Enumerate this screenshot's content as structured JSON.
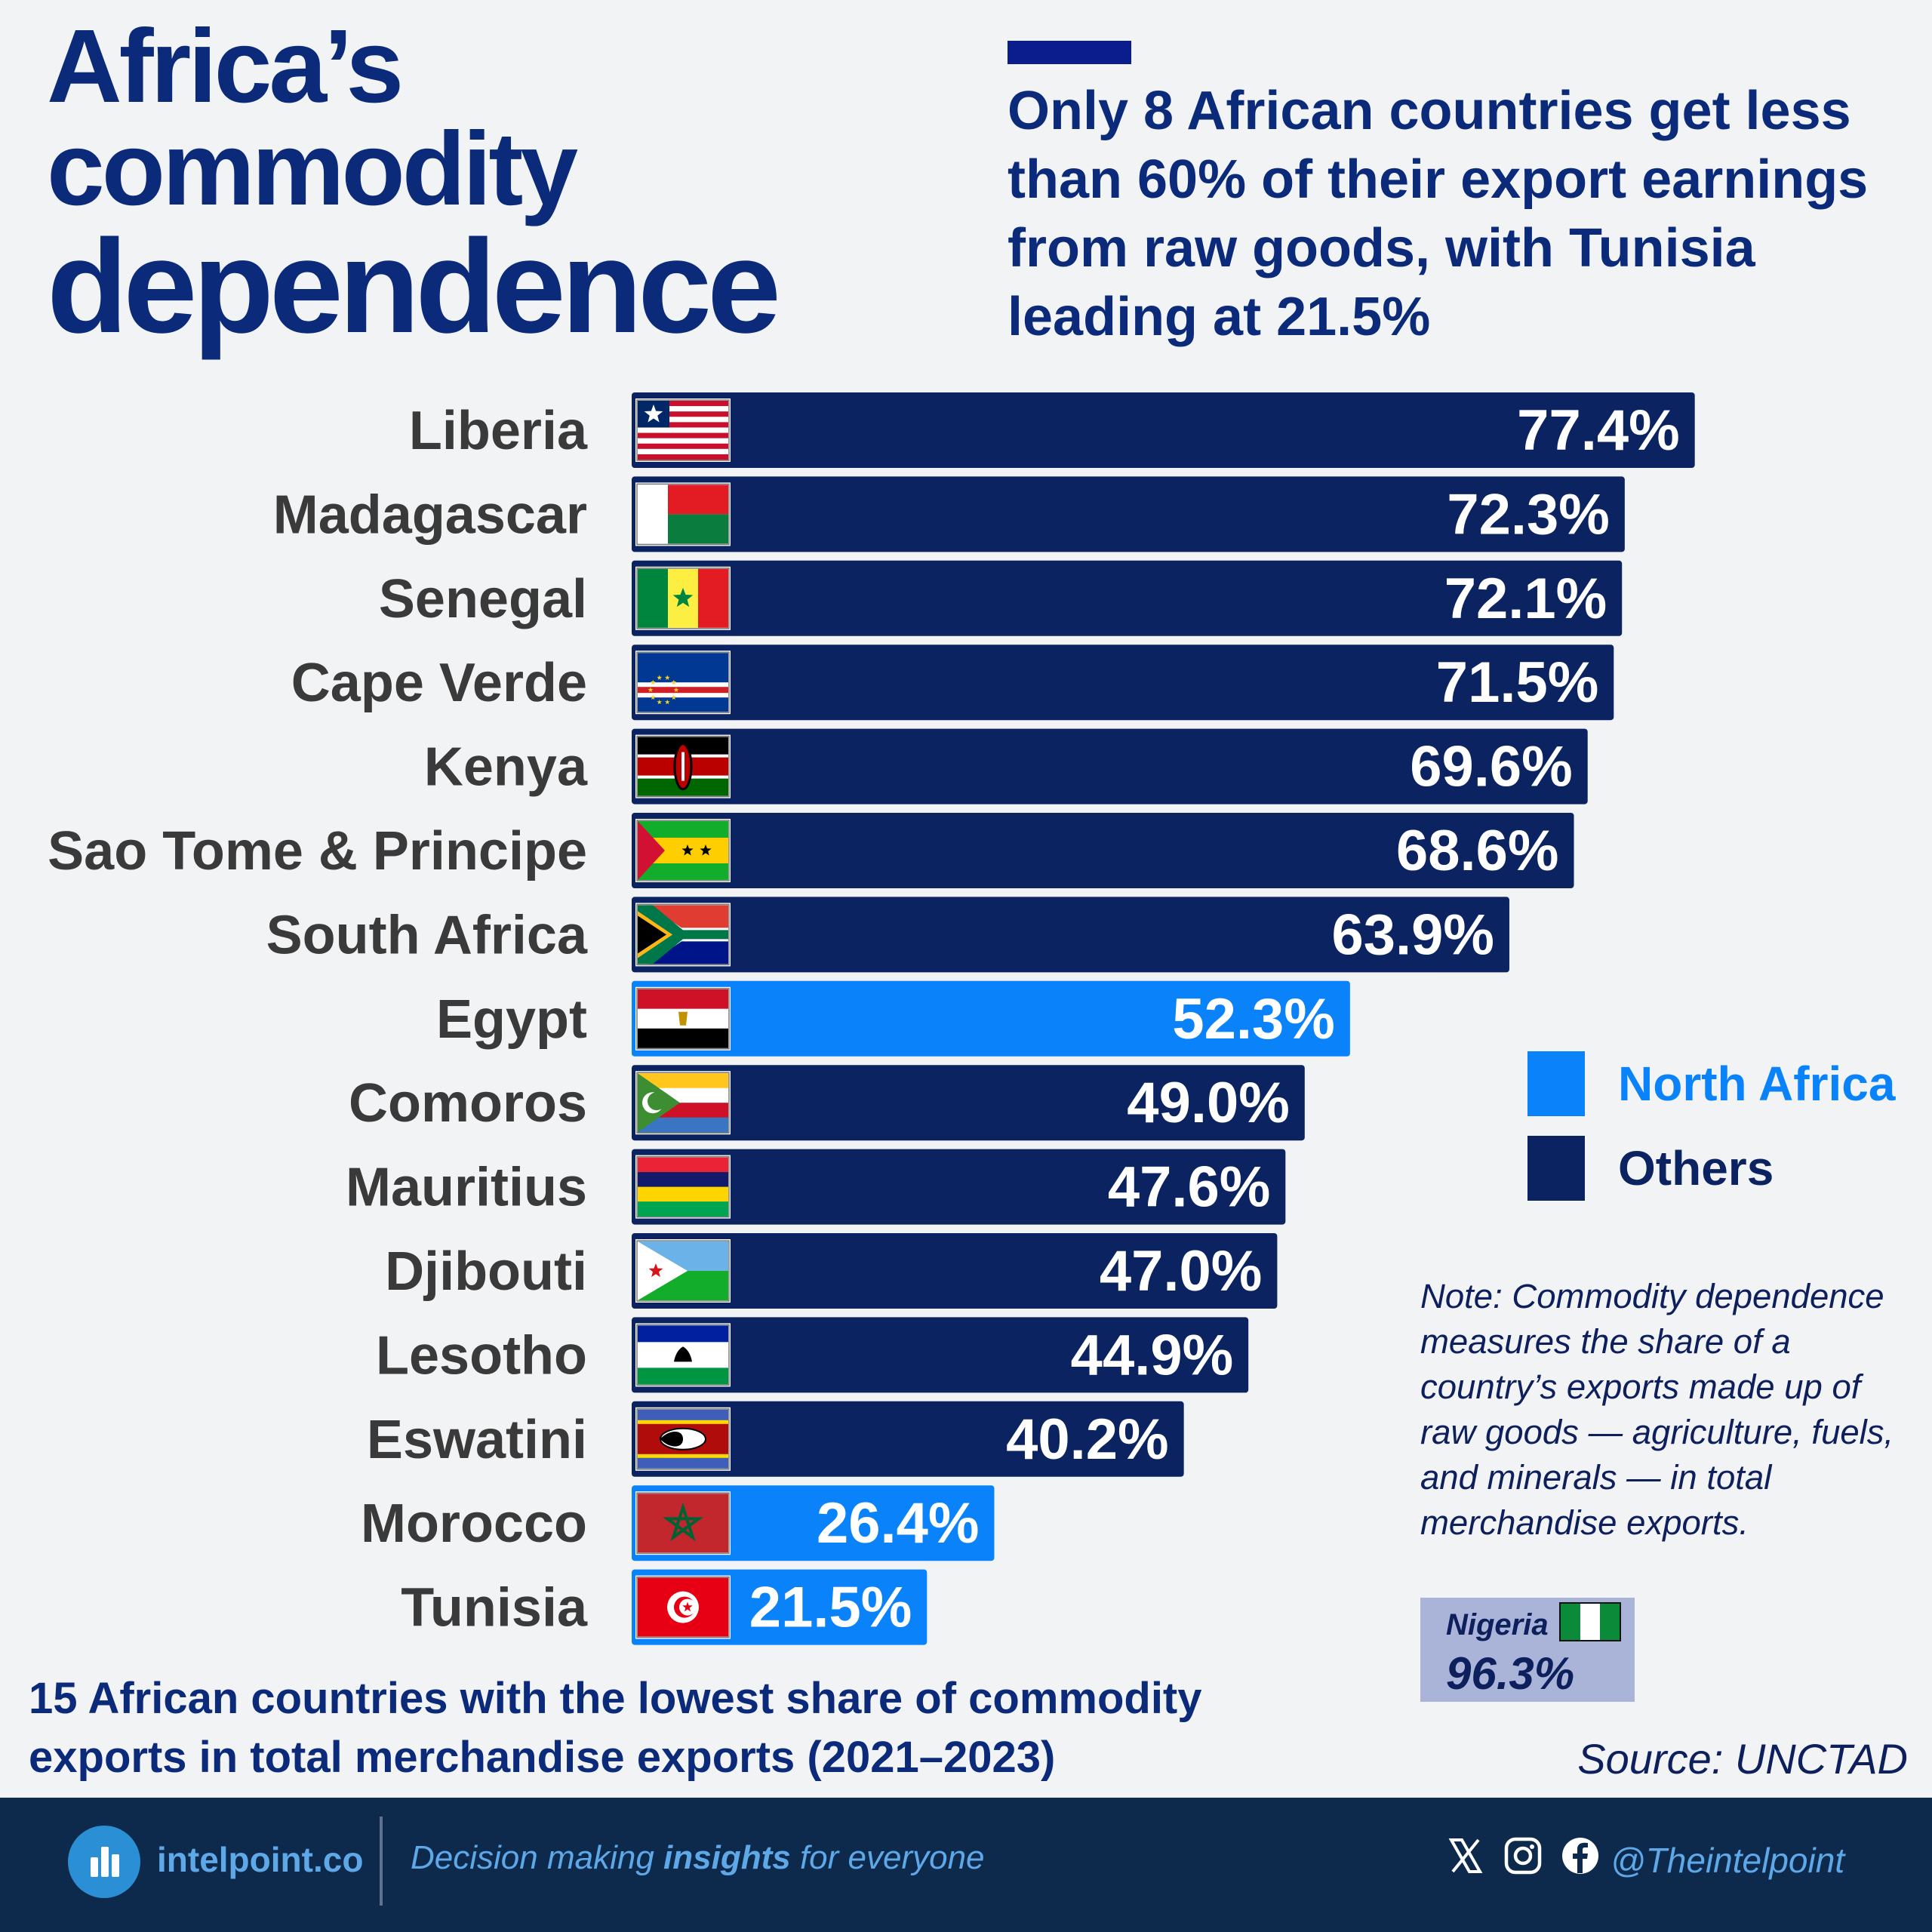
{
  "header": {
    "title_line1": "Africa’s",
    "title_line2": "commodity",
    "title_line3": "dependence",
    "subtitle": "Only 8 African countries get less than 60% of their export earnings from raw goods, with Tunisia leading at 21.5%"
  },
  "colors": {
    "north_africa": "#0a82fa",
    "others": "#0b2461",
    "title": "#0b2a7a"
  },
  "chart_data": {
    "type": "bar",
    "orientation": "horizontal",
    "unit": "%",
    "categories": [
      "Liberia",
      "Madagascar",
      "Senegal",
      "Cape Verde",
      "Kenya",
      "Sao Tome & Principe",
      "South Africa",
      "Egypt",
      "Comoros",
      "Mauritius",
      "Djibouti",
      "Lesotho",
      "Eswatini",
      "Morocco",
      "Tunisia"
    ],
    "values": [
      77.4,
      72.3,
      72.1,
      71.5,
      69.6,
      68.6,
      63.9,
      52.3,
      49.0,
      47.6,
      47.0,
      44.9,
      40.2,
      26.4,
      21.5
    ],
    "value_labels": [
      "77.4%",
      "72.3%",
      "72.1%",
      "71.5%",
      "69.6%",
      "68.6%",
      "63.9%",
      "52.3%",
      "49.0%",
      "47.6%",
      "47.0%",
      "44.9%",
      "40.2%",
      "26.4%",
      "21.5%"
    ],
    "groups": [
      "Others",
      "Others",
      "Others",
      "Others",
      "Others",
      "Others",
      "Others",
      "North Africa",
      "Others",
      "Others",
      "Others",
      "Others",
      "Others",
      "North Africa",
      "North Africa"
    ],
    "flags": [
      "liberia",
      "madagascar",
      "senegal",
      "cape-verde",
      "kenya",
      "sao-tome",
      "south-africa",
      "egypt",
      "comoros",
      "mauritius",
      "djibouti",
      "lesotho",
      "eswatini",
      "morocco",
      "tunisia"
    ],
    "legend": [
      "North Africa",
      "Others"
    ],
    "legend_position": "right",
    "grid": false,
    "xlim": [
      0,
      100
    ]
  },
  "note": "Note: Commodity dependence measures the share of a country’s exports made up of raw goods — agriculture, fuels, and minerals — in total merchandise exports.",
  "nigeria": {
    "name": "Nigeria",
    "value": "96.3%"
  },
  "caption": "15 African countries with the lowest share of commodity exports in total merchandise exports (2021–2023)",
  "source": "Source: UNCTAD",
  "footer": {
    "site": "intelpoint.co",
    "tagline_pre": "Decision making ",
    "tagline_bold": "insights",
    "tagline_post": " for everyone",
    "handle": "@Theintelpoint",
    "icons": [
      "x-icon",
      "instagram-icon",
      "facebook-icon"
    ]
  }
}
